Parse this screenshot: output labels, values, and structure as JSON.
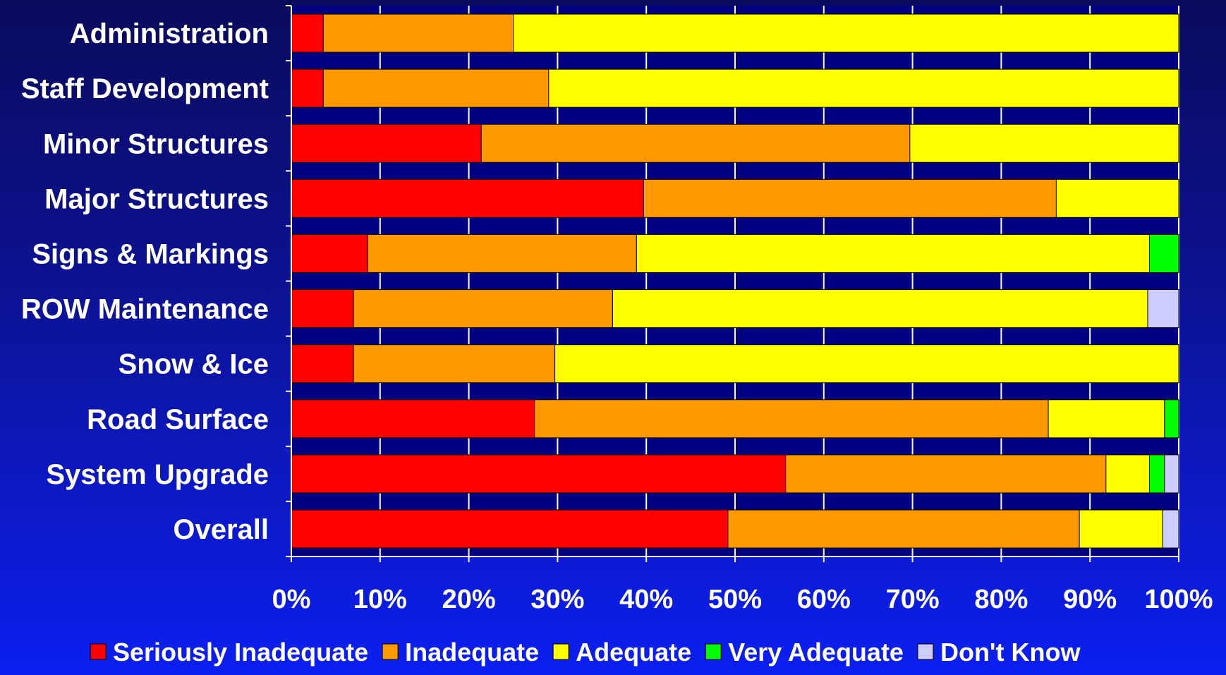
{
  "chart_data": {
    "type": "bar",
    "orientation": "horizontal",
    "stacked": true,
    "percent": true,
    "categories": [
      "Administration",
      "Staff Development",
      "Minor Structures",
      "Major Structures",
      "Signs & Markings",
      "ROW Maintenance",
      "Snow & Ice",
      "Road Surface",
      "System Upgrade",
      "Overall"
    ],
    "series": [
      {
        "name": "Seriously Inadequate",
        "color": "#ff0000",
        "values": [
          3.6,
          3.6,
          21.4,
          39.7,
          8.6,
          7.0,
          7.0,
          27.4,
          55.7,
          49.2
        ]
      },
      {
        "name": "Inadequate",
        "color": "#ff9900",
        "values": [
          21.4,
          25.4,
          48.3,
          46.5,
          30.3,
          29.2,
          22.7,
          57.9,
          36.1,
          39.6
        ]
      },
      {
        "name": "Adequate",
        "color": "#ffff00",
        "values": [
          75.0,
          71.0,
          30.3,
          13.8,
          57.8,
          60.3,
          70.3,
          13.1,
          4.9,
          9.4
        ]
      },
      {
        "name": "Very Adequate",
        "color": "#00ff00",
        "values": [
          0,
          0,
          0,
          0,
          3.3,
          0,
          0,
          1.6,
          1.7,
          0
        ]
      },
      {
        "name": "Don't Know",
        "color": "#ccccff",
        "values": [
          0,
          0,
          0,
          0,
          0,
          3.5,
          0,
          0,
          1.6,
          1.8
        ]
      }
    ],
    "xlim": [
      0,
      100
    ],
    "x_ticks": [
      "0%",
      "10%",
      "20%",
      "30%",
      "40%",
      "50%",
      "60%",
      "70%",
      "80%",
      "90%",
      "100%"
    ],
    "grid": true,
    "legend_position": "bottom",
    "plot_background": "#000080",
    "grid_color": "#ffffff"
  }
}
